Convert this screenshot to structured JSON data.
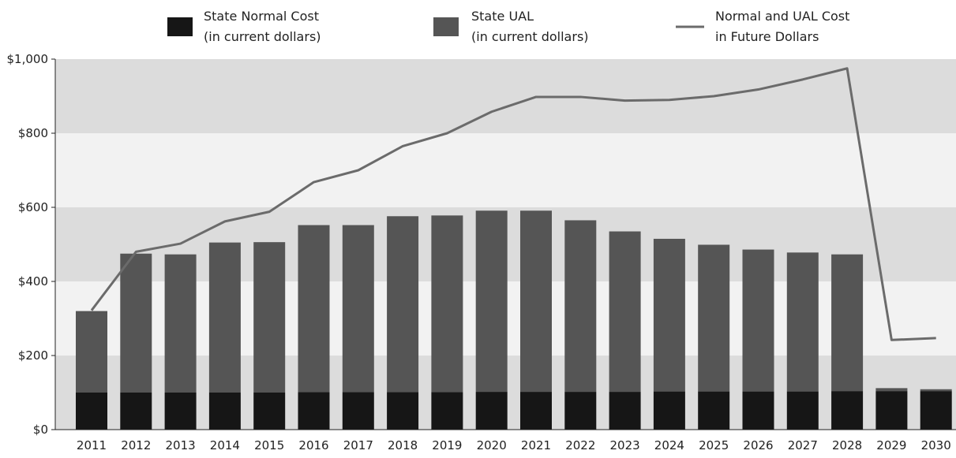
{
  "chart_data": {
    "type": "bar",
    "stacked": true,
    "categories": [
      "2011",
      "2012",
      "2013",
      "2014",
      "2015",
      "2016",
      "2017",
      "2018",
      "2019",
      "2020",
      "2021",
      "2022",
      "2023",
      "2024",
      "2025",
      "2026",
      "2027",
      "2028",
      "2029",
      "2030"
    ],
    "series": [
      {
        "name_line1": "State Normal Cost",
        "name_line2": "(in current dollars)",
        "kind": "bar",
        "color": "#161616",
        "values": [
          100,
          100,
          100,
          100,
          100,
          101,
          101,
          101,
          101,
          102,
          102,
          102,
          102,
          103,
          103,
          103,
          103,
          104,
          104,
          104
        ]
      },
      {
        "name_line1": "State UAL",
        "name_line2": "(in current dollars)",
        "kind": "bar",
        "color": "#555555",
        "values": [
          220,
          375,
          373,
          405,
          406,
          451,
          451,
          475,
          477,
          489,
          489,
          463,
          433,
          412,
          396,
          383,
          375,
          369,
          8,
          5
        ]
      },
      {
        "name_line1": "Normal and UAL Cost",
        "name_line2": "in Future Dollars",
        "kind": "line",
        "color": "#6b6b6b",
        "values": [
          322,
          480,
          502,
          562,
          588,
          668,
          700,
          765,
          800,
          858,
          898,
          898,
          888,
          890,
          900,
          918,
          945,
          975,
          242,
          247
        ]
      }
    ],
    "y_ticks": [
      "$0",
      "$200",
      "$400",
      "$600",
      "$800",
      "$1,000"
    ],
    "ylim": [
      0,
      1000
    ],
    "band_colors": [
      "#dcdcdc",
      "#f2f2f2"
    ],
    "legend_position": "top"
  }
}
